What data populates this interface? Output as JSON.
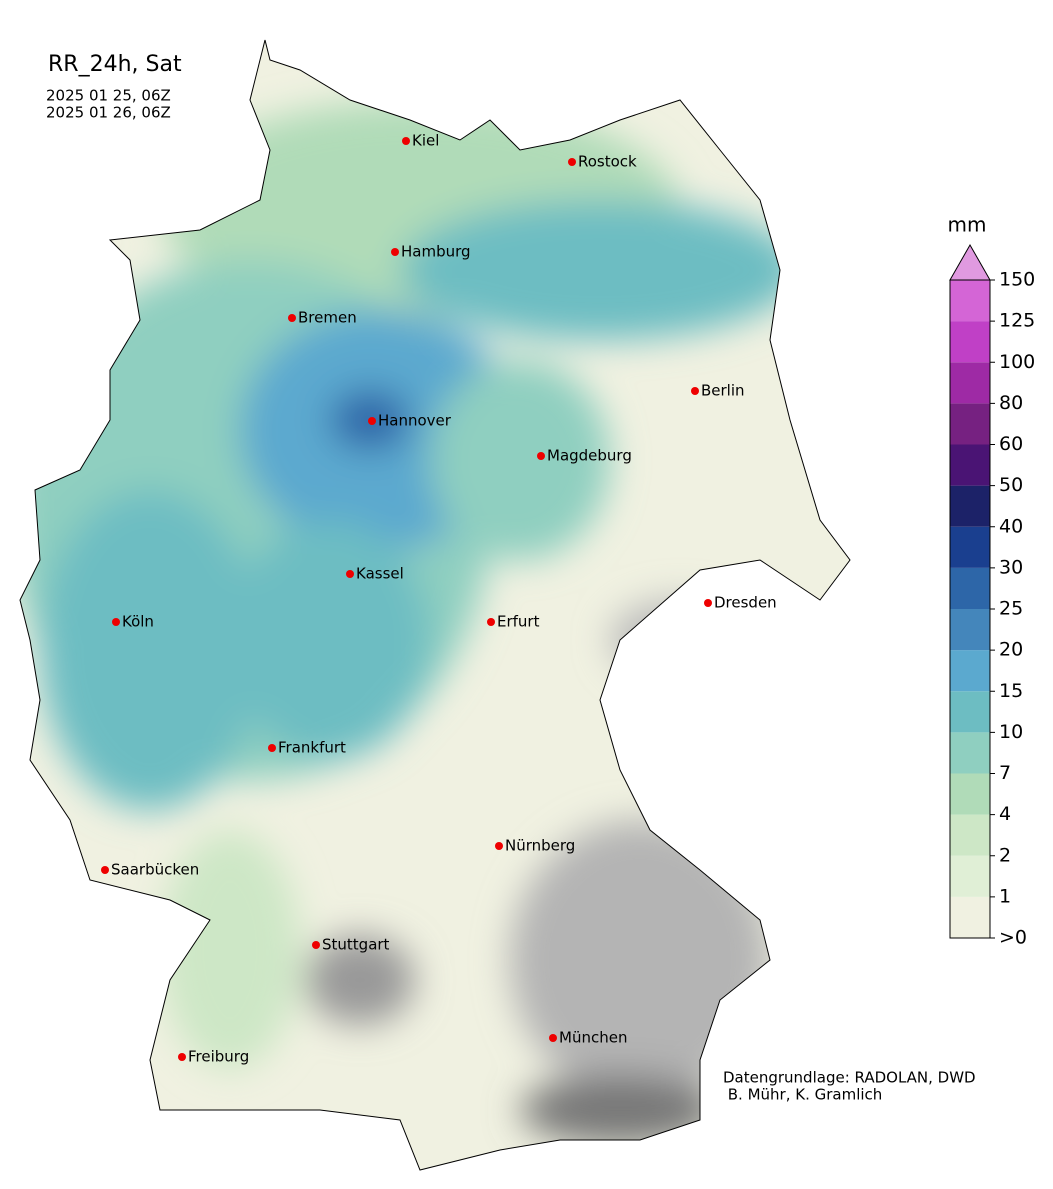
{
  "title": "RR_24h, Sat",
  "dates": [
    "2025 01 25, 06Z",
    "2025 01 26, 06Z"
  ],
  "cities": [
    "Kiel",
    "Rostock",
    "Hamburg",
    "Bremen",
    "Berlin",
    "Hannover",
    "Magdeburg",
    "Kassel",
    "Dresden",
    "Köln",
    "Erfurt",
    "Frankfurt",
    "Nürnberg",
    "Saarbücken",
    "Stuttgart",
    "München",
    "Freiburg"
  ],
  "colorbar": {
    "unit": "mm",
    "labels": [
      ">0",
      "1",
      "2",
      "4",
      "7",
      "10",
      "15",
      "20",
      "25",
      "30",
      "40",
      "50",
      "60",
      "80",
      "100",
      "125",
      "150"
    ],
    "colors": [
      "#f0f1e1",
      "#e0efd6",
      "#cde7c6",
      "#b0dbb8",
      "#8fcfc0",
      "#6dbdc2",
      "#5ba9cf",
      "#4486bb",
      "#2d66a8",
      "#1a3f8f",
      "#1c2268",
      "#4a1474",
      "#762181",
      "#9e2aa5",
      "#c040c6",
      "#d465d6",
      "#e09ae0"
    ]
  },
  "credits": [
    "Datengrundlage: RADOLAN, DWD",
    " B. Mühr, K. Gramlich"
  ]
}
